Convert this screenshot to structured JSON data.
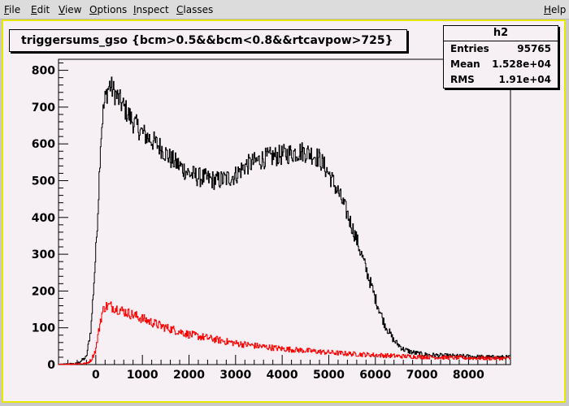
{
  "menubar": {
    "items": [
      {
        "key": "F",
        "rest": "ile"
      },
      {
        "key": "E",
        "rest": "dit"
      },
      {
        "key": "V",
        "rest": "iew"
      },
      {
        "key": "O",
        "rest": "ptions"
      },
      {
        "key": "I",
        "rest": "nspect"
      },
      {
        "key": "C",
        "rest": "lasses"
      }
    ],
    "help": {
      "key": "H",
      "rest": "elp"
    }
  },
  "title": "triggersums_gso {bcm>0.5&&bcm<0.8&&rtcavpow>725}",
  "stats": {
    "name": "h2",
    "rows": [
      {
        "label": "Entries",
        "value": "95765"
      },
      {
        "label": "Mean",
        "value": "1.528e+04"
      },
      {
        "label": "RMS",
        "value": "1.91e+04"
      }
    ]
  },
  "colors": {
    "canvas_bg": "#f6f0f4",
    "canvas_border": "#e7e700",
    "series_black": "#000000",
    "series_red": "#ff0000"
  },
  "chart_data": {
    "type": "line",
    "title": "triggersums_gso {bcm>0.5&&bcm<0.8&&rtcavpow>725}",
    "xlabel": "",
    "ylabel": "",
    "xlim": [
      -800,
      8900
    ],
    "ylim": [
      0,
      830
    ],
    "x_ticks": [
      "0",
      "1000",
      "2000",
      "3000",
      "4000",
      "5000",
      "6000",
      "7000",
      "8000"
    ],
    "y_ticks": [
      "0",
      "100",
      "200",
      "300",
      "400",
      "500",
      "600",
      "700",
      "800"
    ],
    "grid": false,
    "series": [
      {
        "color": "#000000",
        "x": [
          -800,
          -400,
          -200,
          -100,
          0,
          50,
          100,
          150,
          200,
          250,
          300,
          400,
          500,
          600,
          800,
          1000,
          1200,
          1400,
          1600,
          1800,
          2000,
          2200,
          2400,
          2600,
          2800,
          3000,
          3200,
          3400,
          3600,
          3800,
          4000,
          4200,
          4400,
          4600,
          4800,
          5000,
          5200,
          5400,
          5600,
          5800,
          6000,
          6200,
          6400,
          6600,
          6800,
          7000,
          7200,
          7500,
          8000,
          8500,
          8900
        ],
        "values": [
          0,
          3,
          20,
          100,
          300,
          430,
          600,
          680,
          720,
          745,
          760,
          740,
          720,
          700,
          660,
          630,
          610,
          590,
          560,
          540,
          520,
          510,
          505,
          500,
          505,
          515,
          540,
          550,
          560,
          565,
          570,
          575,
          580,
          575,
          560,
          520,
          470,
          410,
          340,
          260,
          180,
          110,
          65,
          42,
          33,
          28,
          26,
          24,
          22,
          20,
          20
        ]
      },
      {
        "color": "#ff0000",
        "x": [
          -800,
          -200,
          -100,
          0,
          50,
          100,
          150,
          200,
          300,
          400,
          600,
          800,
          1000,
          1200,
          1400,
          1600,
          1800,
          2000,
          2500,
          3000,
          3500,
          4000,
          4500,
          5000,
          5500,
          6000,
          6500,
          7000,
          7500,
          8000,
          8500,
          8900
        ],
        "values": [
          0,
          3,
          12,
          40,
          80,
          120,
          145,
          158,
          160,
          155,
          145,
          135,
          125,
          115,
          105,
          97,
          90,
          82,
          70,
          58,
          50,
          43,
          38,
          33,
          29,
          26,
          23,
          21,
          19,
          18,
          17,
          17
        ]
      }
    ]
  }
}
